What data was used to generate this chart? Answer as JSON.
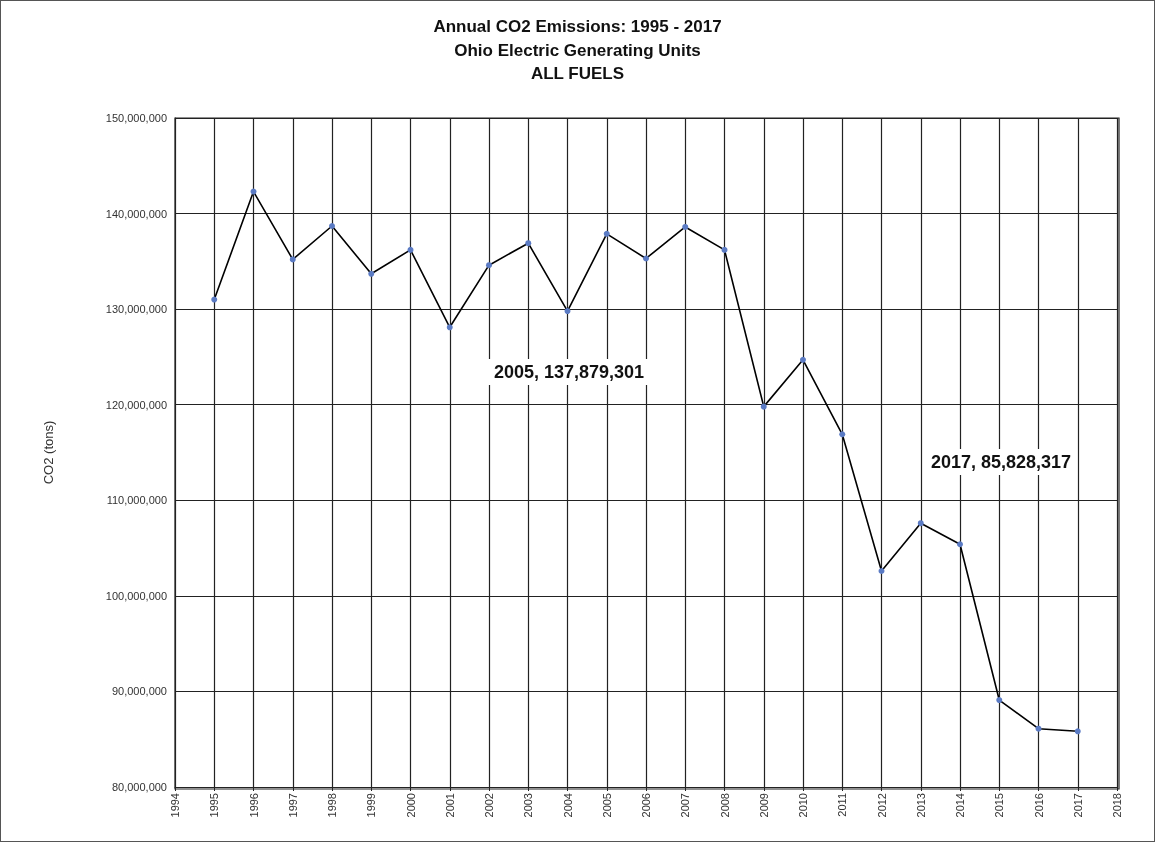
{
  "chart_data": {
    "type": "line",
    "title": "Annual CO2 Emissions: 1995 - 2017",
    "subtitle": "Ohio Electric Generating Units\nALL FUELS",
    "ylabel": "CO2 (tons)",
    "x": [
      1995,
      1996,
      1997,
      1998,
      1999,
      2000,
      2001,
      2002,
      2003,
      2004,
      2005,
      2006,
      2007,
      2008,
      2009,
      2010,
      2011,
      2012,
      2013,
      2014,
      2015,
      2016,
      2017
    ],
    "series": [
      {
        "color": "#000000",
        "values": [
          131000000,
          142300000,
          135200000,
          138700000,
          133700000,
          136200000,
          128100000,
          134600000,
          136900000,
          129800000,
          137879301,
          135300000,
          138600000,
          136200000,
          119800000,
          124700000,
          116900000,
          102600000,
          107600000,
          105400000,
          89100000,
          86100000,
          85828317
        ]
      }
    ],
    "xlim": [
      1994,
      2018
    ],
    "xticks": [
      1994,
      1995,
      1996,
      1997,
      1998,
      1999,
      2000,
      2001,
      2002,
      2003,
      2004,
      2005,
      2006,
      2007,
      2008,
      2009,
      2010,
      2011,
      2012,
      2013,
      2014,
      2015,
      2016,
      2017,
      2018
    ],
    "ylim": [
      80000000,
      150000000
    ],
    "yticks": [
      {
        "value": 80000000,
        "label": "80,000,000"
      },
      {
        "value": 90000000,
        "label": "90,000,000"
      },
      {
        "value": 100000000,
        "label": "100,000,000"
      },
      {
        "value": 110000000,
        "label": "110,000,000"
      },
      {
        "value": 120000000,
        "label": "120,000,000"
      },
      {
        "value": 130000000,
        "label": "130,000,000"
      },
      {
        "value": 140000000,
        "label": "140,000,000"
      },
      {
        "value": 150000000,
        "label": "150,000,000"
      }
    ],
    "annotations": [
      "2005, 137,879,301",
      "2017, 85,828,317"
    ],
    "grid": true,
    "marker": "circle",
    "line_style": "solid"
  }
}
